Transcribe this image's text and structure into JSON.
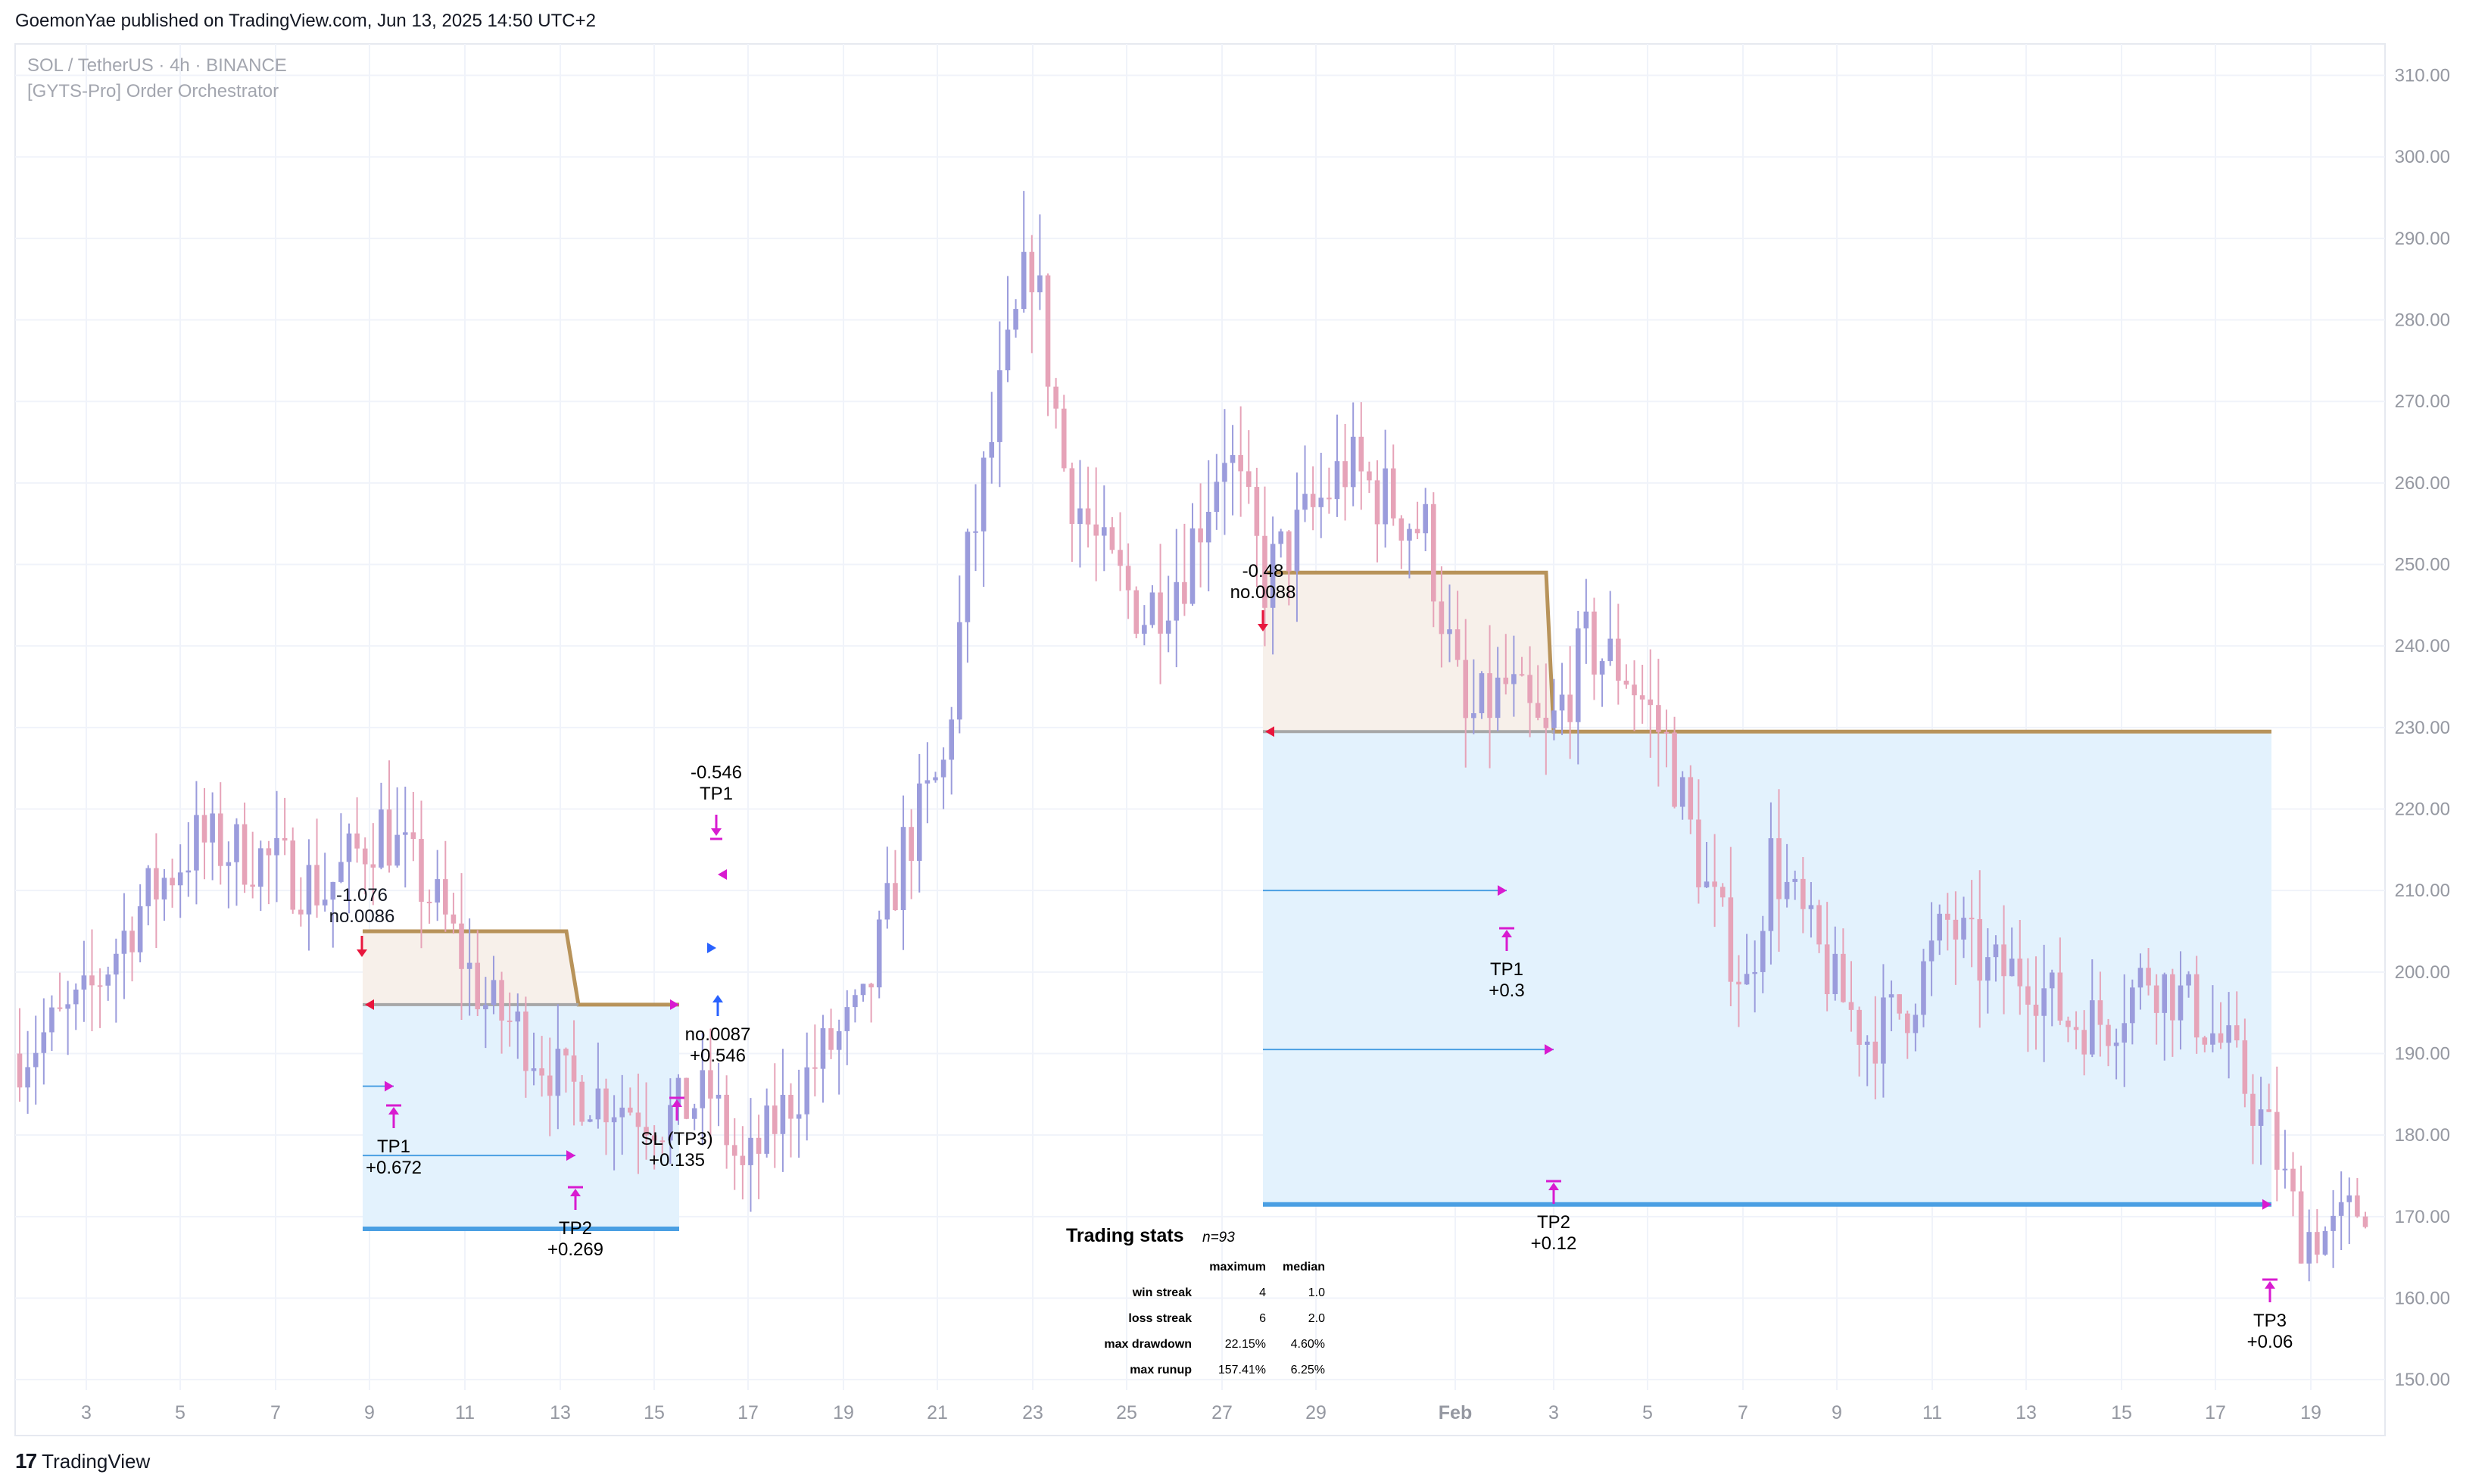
{
  "header": {
    "published": "GoemonYae published on TradingView.com, Jun 13, 2025 14:50 UTC+2",
    "symbol": "SOL / TetherUS · 4h · BINANCE",
    "indicator": "[GYTS-Pro] Order Orchestrator"
  },
  "footer": {
    "brand": "TradingView",
    "logo_mark": "17"
  },
  "colors": {
    "up": "#9b9cdc",
    "down": "#e6a3b8",
    "wick": "#b7b7d0",
    "zone_fill": "#e3f2fd",
    "entry_fill": "#f7f0ea",
    "stop_line": "#b8935a",
    "target_line": "#4a9fe3",
    "mark": "#d81bd0",
    "entry_arrow_short": "#e8173d",
    "entry_arrow_long": "#2962ff",
    "grid": "#f0f3fa",
    "axis_text": "#9598a1"
  },
  "chart_data": {
    "type": "candlestick",
    "title": "SOL / TetherUS · 4h · BINANCE",
    "ylim": [
      145,
      312
    ],
    "y_ticks": [
      "310.00",
      "300.00",
      "290.00",
      "280.00",
      "270.00",
      "260.00",
      "250.00",
      "240.00",
      "230.00",
      "220.00",
      "210.00",
      "200.00",
      "190.00",
      "180.00",
      "170.00",
      "160.00",
      "150.00"
    ],
    "x_ticks": [
      "3",
      "5",
      "7",
      "9",
      "11",
      "13",
      "15",
      "17",
      "19",
      "21",
      "23",
      "25",
      "27",
      "29",
      "Feb",
      "3",
      "5",
      "7",
      "9",
      "11",
      "13",
      "15",
      "17",
      "19"
    ],
    "price_path": [
      [
        0,
        190
      ],
      [
        8,
        196
      ],
      [
        15,
        208
      ],
      [
        22,
        216
      ],
      [
        30,
        214
      ],
      [
        38,
        210
      ],
      [
        45,
        218
      ],
      [
        52,
        208
      ],
      [
        58,
        196
      ],
      [
        62,
        193
      ],
      [
        68,
        186
      ],
      [
        75,
        184
      ],
      [
        80,
        182
      ],
      [
        86,
        185
      ],
      [
        90,
        175
      ],
      [
        95,
        183
      ],
      [
        100,
        190
      ],
      [
        105,
        195
      ],
      [
        110,
        215
      ],
      [
        115,
        225
      ],
      [
        118,
        250
      ],
      [
        122,
        270
      ],
      [
        126,
        288
      ],
      [
        130,
        262
      ],
      [
        135,
        250
      ],
      [
        140,
        244
      ],
      [
        145,
        250
      ],
      [
        150,
        265
      ],
      [
        155,
        248
      ],
      [
        160,
        255
      ],
      [
        165,
        262
      ],
      [
        170,
        258
      ],
      [
        175,
        254
      ],
      [
        180,
        230
      ],
      [
        185,
        235
      ],
      [
        190,
        228
      ],
      [
        195,
        240
      ],
      [
        200,
        237
      ],
      [
        205,
        228
      ],
      [
        210,
        210
      ],
      [
        215,
        198
      ],
      [
        218,
        214
      ],
      [
        222,
        206
      ],
      [
        226,
        198
      ],
      [
        230,
        192
      ],
      [
        235,
        196
      ],
      [
        240,
        206
      ],
      [
        245,
        200
      ],
      [
        250,
        200
      ],
      [
        255,
        194
      ],
      [
        260,
        194
      ],
      [
        265,
        200
      ],
      [
        270,
        196
      ],
      [
        275,
        190
      ],
      [
        280,
        180
      ],
      [
        284,
        168
      ],
      [
        288,
        168
      ],
      [
        292,
        172
      ]
    ],
    "candle_count": 293,
    "trades": [
      {
        "side": "short",
        "entry_note": "-1.076",
        "qty": "no.0086",
        "entry": 196,
        "stop": 205,
        "tp_labels": [
          [
            "TP1",
            "+0.672"
          ],
          [
            "TP2",
            "+0.269"
          ],
          [
            "SL (TP3)",
            "+0.135"
          ]
        ]
      },
      {
        "side": "long",
        "entry_note": "-0.546",
        "qty": "no.0087",
        "pnl": "+0.546",
        "tp1": "TP1"
      },
      {
        "side": "short",
        "entry_note": "-0.48",
        "qty": "no.0088",
        "entry": 229,
        "stop": 249,
        "tp_labels": [
          [
            "TP1",
            "+0.3"
          ],
          [
            "TP2",
            "+0.12"
          ],
          [
            "TP3",
            "+0.06"
          ]
        ]
      }
    ],
    "stats": {
      "title": "Trading stats",
      "n": "n=93",
      "columns": [
        "maximum",
        "median"
      ],
      "rows": [
        {
          "label": "win streak",
          "max": "4",
          "median": "1.0"
        },
        {
          "label": "loss streak",
          "max": "6",
          "median": "2.0"
        },
        {
          "label": "max drawdown",
          "max": "22.15%",
          "median": "4.60%"
        },
        {
          "label": "max runup",
          "max": "157.41%",
          "median": "6.25%"
        }
      ]
    }
  }
}
